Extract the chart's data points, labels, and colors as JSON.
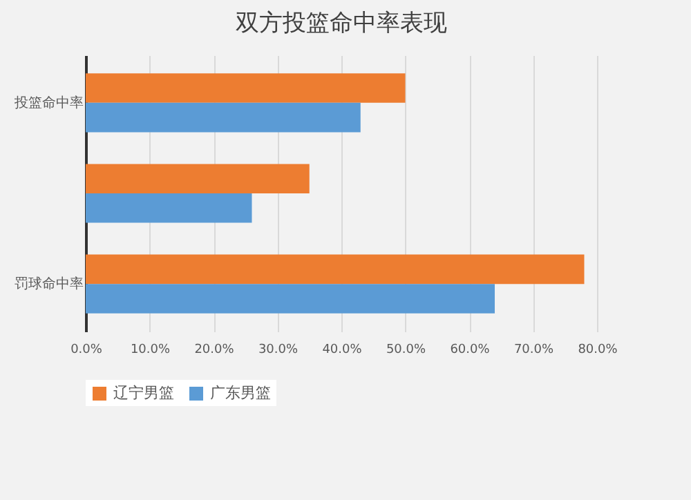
{
  "chart_data": {
    "type": "bar",
    "orientation": "horizontal",
    "title": "双方投篮命中率表现",
    "categories": [
      "投篮命中率",
      null,
      "罚球命中率"
    ],
    "series": [
      {
        "name": "辽宁男篮",
        "color": "#ed7d31",
        "values": [
          50,
          35,
          78
        ]
      },
      {
        "name": "广东男篮",
        "color": "#5b9bd5",
        "values": [
          43,
          26,
          64
        ]
      }
    ],
    "xlim": [
      0,
      80
    ],
    "xticks": [
      {
        "value": 0,
        "label": "0.0%"
      },
      {
        "value": 10,
        "label": "10.0%"
      },
      {
        "value": 20,
        "label": "20.0%"
      },
      {
        "value": 30,
        "label": "30.0%"
      },
      {
        "value": 40,
        "label": "40.0%"
      },
      {
        "value": 50,
        "label": "50.0%"
      },
      {
        "value": 60,
        "label": "60.0%"
      },
      {
        "value": 70,
        "label": "70.0%"
      },
      {
        "value": 80,
        "label": "80.0%"
      }
    ],
    "grid": "x",
    "legend": "bottom"
  }
}
